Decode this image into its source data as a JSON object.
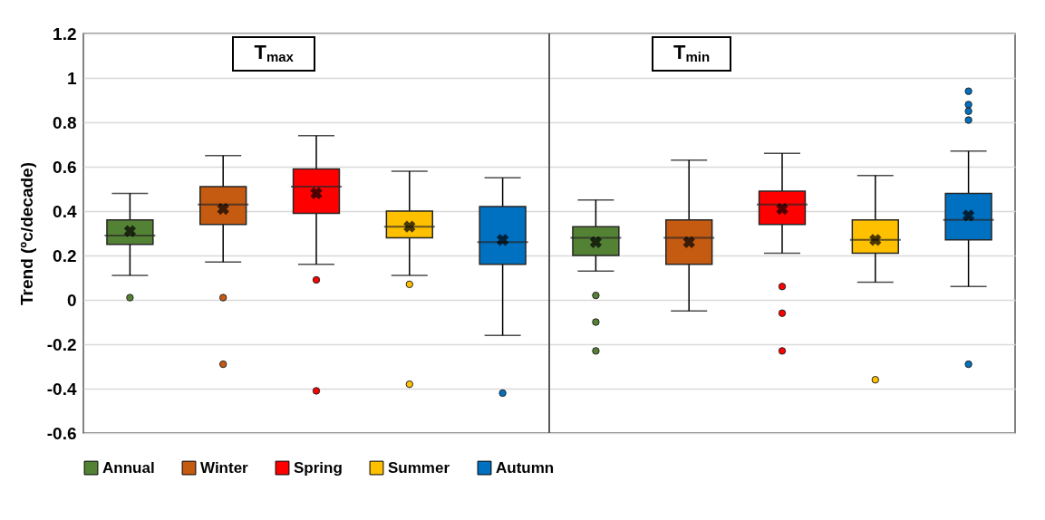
{
  "chart_data": {
    "type": "box",
    "categories": [
      null,
      null,
      null,
      null,
      null,
      null,
      null,
      null,
      null,
      null
    ],
    "ylabel": "Trend (ºc/decade)",
    "ylim": [
      -0.6,
      1.2
    ],
    "yticks": [
      -0.6,
      -0.4,
      -0.2,
      0,
      0.2,
      0.4,
      0.6,
      0.8,
      1,
      1.2
    ],
    "grid": "y",
    "legend": "bottom",
    "marker": "circle",
    "annotations": [
      "T$_{max}$",
      "T$_{min}$"
    ],
    "series": [
      {
        "name": "Annual",
        "color": "#548235",
        "boxes": [
          {
            "low": 0.11,
            "q1": 0.25,
            "median": 0.29,
            "q3": 0.36,
            "high": 0.48,
            "mean": 0.31,
            "outliers": [
              0.01
            ]
          },
          null,
          null,
          null,
          null,
          {
            "low": 0.13,
            "q1": 0.2,
            "median": 0.28,
            "q3": 0.33,
            "high": 0.45,
            "mean": 0.26,
            "outliers": [
              0.02,
              -0.1,
              -0.23
            ]
          },
          null,
          null,
          null,
          null
        ]
      },
      {
        "name": "Winter",
        "color": "#c55a11",
        "boxes": [
          null,
          {
            "low": 0.17,
            "q1": 0.34,
            "median": 0.43,
            "q3": 0.51,
            "high": 0.65,
            "mean": 0.41,
            "outliers": [
              0.01,
              -0.29
            ]
          },
          null,
          null,
          null,
          null,
          {
            "low": -0.05,
            "q1": 0.16,
            "median": 0.28,
            "q3": 0.36,
            "high": 0.63,
            "mean": 0.26
          },
          null,
          null,
          null
        ]
      },
      {
        "name": "Spring",
        "color": "#ff0000",
        "boxes": [
          null,
          null,
          {
            "low": 0.16,
            "q1": 0.39,
            "median": 0.51,
            "q3": 0.59,
            "high": 0.74,
            "mean": 0.48,
            "outliers": [
              0.09,
              -0.41
            ]
          },
          null,
          null,
          null,
          null,
          {
            "low": 0.21,
            "q1": 0.34,
            "median": 0.43,
            "q3": 0.49,
            "high": 0.66,
            "mean": 0.41,
            "outliers": [
              0.06,
              -0.06,
              -0.23
            ]
          },
          null,
          null
        ]
      },
      {
        "name": "Summer",
        "color": "#ffc000",
        "boxes": [
          null,
          null,
          null,
          {
            "low": 0.11,
            "q1": 0.28,
            "median": 0.33,
            "q3": 0.4,
            "high": 0.58,
            "mean": 0.33,
            "outliers": [
              0.07,
              -0.38
            ]
          },
          null,
          null,
          null,
          null,
          {
            "low": 0.08,
            "q1": 0.21,
            "median": 0.27,
            "q3": 0.36,
            "high": 0.56,
            "mean": 0.27,
            "outliers": [
              -0.36
            ]
          },
          null
        ]
      },
      {
        "name": "Autumn",
        "color": "#0070c0",
        "boxes": [
          null,
          null,
          null,
          null,
          {
            "low": -0.16,
            "q1": 0.16,
            "median": 0.26,
            "q3": 0.42,
            "high": 0.55,
            "mean": 0.27,
            "outliers": [
              -0.42
            ]
          },
          null,
          null,
          null,
          null,
          {
            "low": 0.06,
            "q1": 0.27,
            "median": 0.36,
            "q3": 0.48,
            "high": 0.67,
            "mean": 0.38,
            "outliers": [
              0.94,
              0.88,
              0.85,
              0.81,
              -0.29
            ]
          }
        ]
      }
    ]
  }
}
